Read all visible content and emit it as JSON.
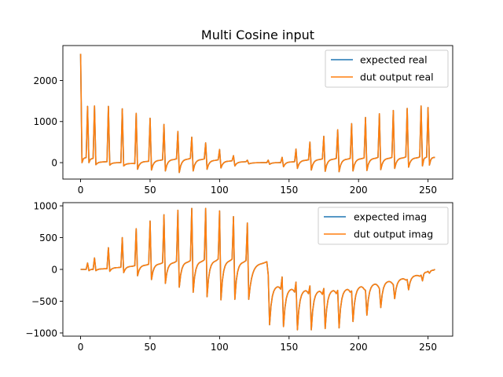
{
  "chart_data": [
    {
      "type": "line",
      "title": "Multi Cosine input",
      "xlabel": "",
      "ylabel": "",
      "xlim": [
        -12.75,
        267.75
      ],
      "ylim": [
        -400,
        2850
      ],
      "xticks": [
        0,
        50,
        100,
        150,
        200,
        250
      ],
      "yticks": [
        0,
        1000,
        2000
      ],
      "legend_position": "top-right",
      "grid": false,
      "series": [
        {
          "name": "expected real",
          "color": "#1f77b4"
        },
        {
          "name": "dut output real",
          "color": "#ff7f0e"
        }
      ],
      "signal": {
        "n_points": 256,
        "spike_positions": [
          0,
          5,
          10,
          20,
          30,
          40,
          50,
          60,
          70,
          80,
          90,
          100,
          110,
          120,
          135,
          145,
          155,
          165,
          175,
          185,
          195,
          205,
          215,
          225,
          235,
          245,
          250
        ],
        "spike_peaks": [
          2650,
          1370,
          1380,
          1370,
          1310,
          1200,
          1080,
          930,
          760,
          620,
          480,
          320,
          170,
          60,
          60,
          130,
          330,
          500,
          640,
          800,
          950,
          1100,
          1190,
          1270,
          1320,
          1380,
          1340
        ],
        "spike_troughs": [
          0,
          0,
          -50,
          -60,
          -80,
          -160,
          -180,
          -200,
          -240,
          -200,
          -160,
          -130,
          -80,
          -30,
          -40,
          -100,
          -140,
          -180,
          -210,
          -220,
          -200,
          -190,
          -170,
          -140,
          -110,
          -80,
          -60
        ],
        "baseline": [
          120,
          100,
          20,
          0,
          -20,
          30,
          60,
          80,
          90,
          80,
          60,
          40,
          20,
          0,
          0,
          20,
          60,
          80,
          90,
          90,
          100,
          110,
          110,
          120,
          120,
          130,
          130
        ],
        "end_value": 130
      }
    },
    {
      "type": "line",
      "title": "",
      "xlabel": "",
      "ylabel": "",
      "xlim": [
        -12.75,
        267.75
      ],
      "ylim": [
        -1050,
        1050
      ],
      "xticks": [
        0,
        50,
        100,
        150,
        200,
        250
      ],
      "yticks": [
        -1000,
        -500,
        0,
        500,
        1000
      ],
      "legend_position": "top-right",
      "grid": false,
      "series": [
        {
          "name": "expected imag",
          "color": "#1f77b4"
        },
        {
          "name": "dut output imag",
          "color": "#ff7f0e"
        }
      ],
      "signal": {
        "n_points": 256,
        "spike_positions": [
          5,
          10,
          20,
          30,
          40,
          50,
          60,
          70,
          80,
          90,
          100,
          110,
          120,
          135,
          145,
          155,
          165,
          175,
          185,
          195,
          205,
          215,
          225,
          235,
          245,
          250
        ],
        "spike_peaks": [
          100,
          180,
          340,
          500,
          640,
          760,
          860,
          930,
          960,
          960,
          920,
          830,
          730,
          -80,
          -120,
          -200,
          -260,
          -300,
          -330,
          -340,
          -330,
          -300,
          -240,
          -160,
          -90,
          -30
        ],
        "spike_troughs": [
          -20,
          -20,
          -30,
          -50,
          -100,
          -160,
          -220,
          -280,
          -360,
          -430,
          -480,
          -470,
          -470,
          -870,
          -900,
          -950,
          -950,
          -930,
          -920,
          -820,
          -720,
          -600,
          -460,
          -320,
          -180,
          -60
        ],
        "baseline": [
          0,
          10,
          30,
          50,
          70,
          90,
          110,
          120,
          130,
          140,
          140,
          120,
          100,
          -260,
          -300,
          -320,
          -330,
          -320,
          -300,
          -260,
          -220,
          -180,
          -140,
          -90,
          -40,
          -10
        ],
        "end_value": 0
      }
    }
  ]
}
